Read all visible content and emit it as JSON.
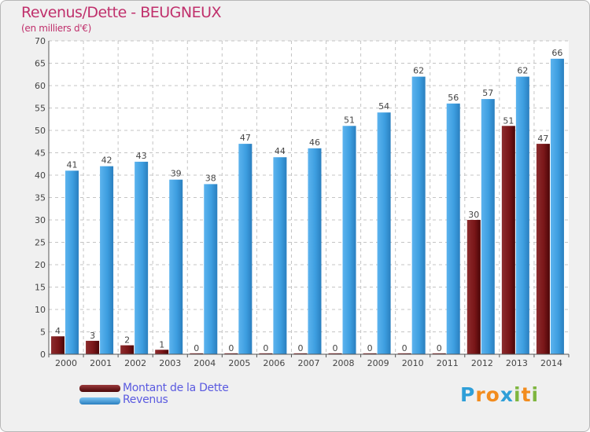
{
  "title": "Revenus/Dette - BEUGNEUX",
  "subtitle": "(en milliers d'€)",
  "logo": {
    "letters": [
      "P",
      "r",
      "o",
      "x",
      "i",
      "t",
      "i"
    ],
    "colors": [
      "#2f9fd8",
      "#f28c1e",
      "#f28c1e",
      "#2f9fd8",
      "#7fb640",
      "#f28c1e",
      "#7fb640"
    ]
  },
  "colors": {
    "dette": "#7a1618",
    "revenus": "#3d9ee0",
    "title": "#c0306c",
    "legend_text": "#5a5ae0"
  },
  "chart_data": {
    "type": "bar",
    "title": "Revenus/Dette - BEUGNEUX",
    "ylabel": "(en milliers d'€)",
    "xlabel": "",
    "ylim": [
      0,
      70
    ],
    "yticks": [
      0,
      5,
      10,
      15,
      20,
      25,
      30,
      35,
      40,
      45,
      50,
      55,
      60,
      65,
      70
    ],
    "grid": true,
    "legend_position": "bottom-left",
    "categories": [
      "2000",
      "2001",
      "2002",
      "2003",
      "2004",
      "2005",
      "2006",
      "2007",
      "2008",
      "2009",
      "2010",
      "2011",
      "2012",
      "2013",
      "2014"
    ],
    "series": [
      {
        "name": "Montant de la Dette",
        "values": [
          4,
          3,
          2,
          1,
          0,
          0,
          0,
          0,
          0,
          0,
          0,
          0,
          30,
          51,
          47
        ],
        "labels": [
          "4",
          "3",
          "2",
          "1",
          "0",
          "0",
          "0",
          "0",
          "0",
          "0",
          "0",
          "0",
          "30",
          "51",
          "47"
        ]
      },
      {
        "name": "Revenus",
        "values": [
          41,
          42,
          43,
          39,
          38,
          47,
          44,
          46,
          51,
          54,
          62,
          56,
          57,
          62,
          66
        ],
        "labels": [
          "41",
          "42",
          "43",
          "39",
          "38",
          "47",
          "44",
          "46",
          "51",
          "54",
          "62",
          "56",
          "57",
          "62",
          "66"
        ]
      }
    ]
  }
}
